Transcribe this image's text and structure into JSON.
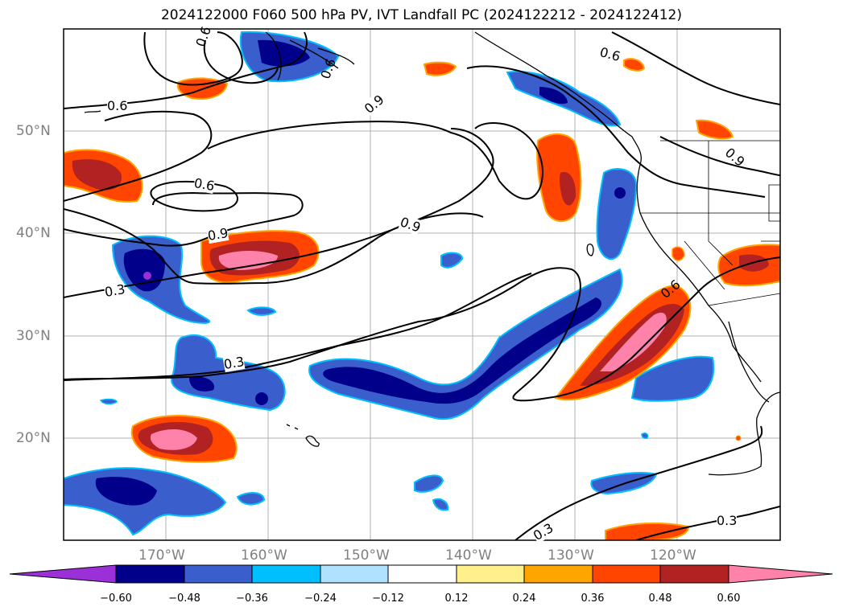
{
  "title": "2024122000 F060 500 hPa PV, IVT Landfall PC (2024122212 - 2024122412)",
  "map": {
    "lat_labels": [
      "50°N",
      "40°N",
      "30°N",
      "20°N"
    ],
    "lon_labels": [
      "170°W",
      "160°W",
      "150°W",
      "140°W",
      "130°W",
      "120°W"
    ],
    "contour_labels": [
      "0.6",
      "0.6",
      "0.9",
      "0.6",
      "0.6",
      "0.9",
      "0.6",
      "0.9",
      "0.9",
      "0.3",
      "0.6",
      "0.3",
      "0.3",
      "0.3"
    ]
  },
  "colorbar": {
    "ticks": [
      "−0.60",
      "−0.48",
      "−0.36",
      "−0.24",
      "−0.12",
      "0.12",
      "0.24",
      "0.36",
      "0.48",
      "0.60"
    ],
    "colors": [
      "#9b30d9",
      "#00008b",
      "#3a5fcd",
      "#00bfff",
      "#b0e2ff",
      "#ffffff",
      "#fff08c",
      "#ffa500",
      "#ff4500",
      "#b22222",
      "#ff82ab"
    ]
  }
}
